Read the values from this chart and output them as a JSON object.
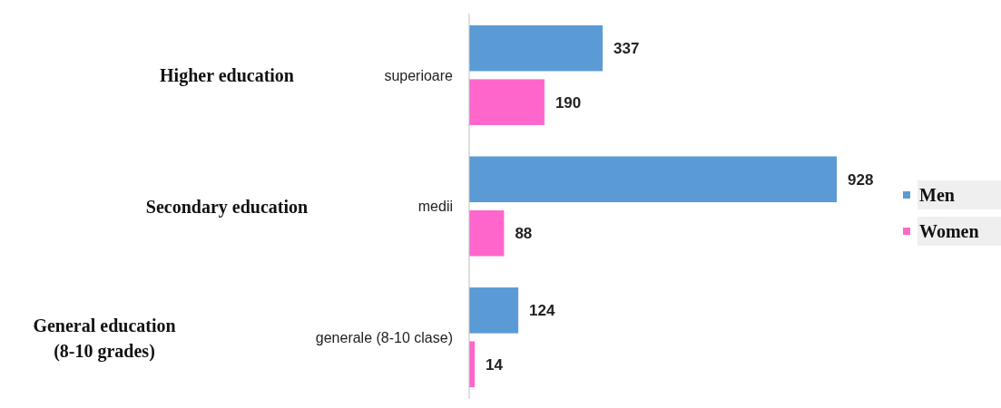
{
  "chart_data": {
    "type": "bar",
    "orientation": "horizontal",
    "categories": [
      "superioare",
      "medii",
      "generale (8-10 clase)"
    ],
    "series": [
      {
        "name": "Men",
        "color": "#5b9bd5",
        "values": [
          337,
          928,
          124
        ]
      },
      {
        "name": "Women",
        "color": "#ff66cc",
        "values": [
          190,
          88,
          14
        ]
      }
    ],
    "data_labels": true,
    "legend": "right",
    "annotations": [
      "Higher education",
      "Secondary education",
      "General education\n(8-10 grades)"
    ]
  }
}
